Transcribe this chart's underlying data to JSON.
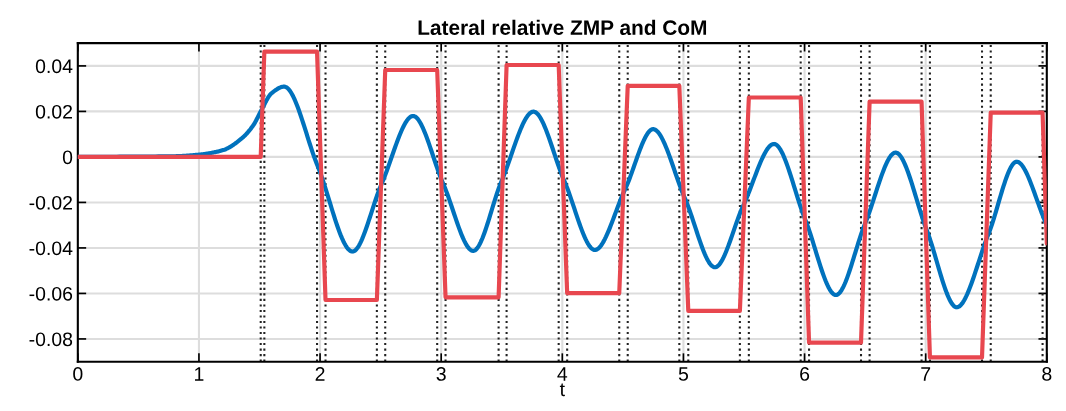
{
  "chart_data": {
    "type": "line",
    "title": "Lateral relative ZMP and CoM",
    "xlabel": "t",
    "xlim": [
      0,
      8
    ],
    "ylim": [
      -0.09,
      0.05
    ],
    "xticks": [
      0,
      1,
      2,
      3,
      4,
      5,
      6,
      7,
      8
    ],
    "yticks": [
      {
        "value": -0.08,
        "label": "-0.08"
      },
      {
        "value": -0.06,
        "label": "-0.06"
      },
      {
        "value": -0.04,
        "label": "-0.04"
      },
      {
        "value": -0.02,
        "label": "-0.02"
      },
      0,
      0.02,
      0.04
    ],
    "grid": true,
    "legend": false,
    "marker": "none",
    "line_style": "solid",
    "series": [
      {
        "color": "#0072bd",
        "x": [
          0,
          0.8,
          1.0,
          1.2,
          1.35,
          1.45,
          1.51,
          1.6,
          1.704,
          1.98,
          2.268,
          2.507,
          2.768,
          3.016,
          3.264,
          3.498,
          3.762,
          4.016,
          4.269,
          4.517,
          4.75,
          5.012,
          5.26,
          5.494,
          5.748,
          6.005,
          6.259,
          6.499,
          6.752,
          7.008,
          7.256,
          7.517,
          7.751,
          8.0
        ],
        "values": [
          0,
          0.0003,
          0.001,
          0.003,
          0.008,
          0.014,
          0.02,
          0.028,
          0.0309,
          -0.004,
          -0.0416,
          -0.012,
          0.018,
          -0.0117,
          -0.0413,
          -0.0107,
          0.0199,
          -0.0105,
          -0.0409,
          -0.0144,
          0.0122,
          -0.0182,
          -0.0485,
          -0.0214,
          0.0057,
          -0.0275,
          -0.0607,
          -0.0294,
          0.0019,
          -0.0321,
          -0.0661,
          -0.0341,
          -0.0021,
          -0.03
        ]
      },
      {
        "color": "#e8474f",
        "x": [
          0,
          1.51,
          1.54,
          1.975,
          2.045,
          2.469,
          2.538,
          2.967,
          3.036,
          3.474,
          3.54,
          3.97,
          4.04,
          4.47,
          4.54,
          4.966,
          5.04,
          5.466,
          5.54,
          5.968,
          6.037,
          6.466,
          6.537,
          6.966,
          7.035,
          7.465,
          7.537,
          7.965,
          8.0
        ],
        "values": [
          0,
          0,
          0.0463,
          0.0463,
          -0.0629,
          -0.0629,
          0.0382,
          0.0382,
          -0.0617,
          -0.0617,
          0.0404,
          0.0404,
          -0.0599,
          -0.0599,
          0.0312,
          0.0312,
          -0.0677,
          -0.0677,
          0.0261,
          0.0261,
          -0.0816,
          -0.0816,
          0.0243,
          0.0243,
          -0.0881,
          -0.0881,
          0.0195,
          0.0195,
          -0.038
        ]
      }
    ],
    "ref_lines": [
      {
        "axis": "x",
        "value": 1.51,
        "color": "#222222",
        "line_style": "dotted"
      },
      {
        "axis": "x",
        "value": 1.54,
        "color": "#222222",
        "line_style": "dotted"
      },
      {
        "axis": "x",
        "value": 1.975,
        "color": "#222222",
        "line_style": "dotted"
      },
      {
        "axis": "x",
        "value": 2.045,
        "color": "#222222",
        "line_style": "dotted"
      },
      {
        "axis": "x",
        "value": 2.469,
        "color": "#222222",
        "line_style": "dotted"
      },
      {
        "axis": "x",
        "value": 2.538,
        "color": "#222222",
        "line_style": "dotted"
      },
      {
        "axis": "x",
        "value": 2.967,
        "color": "#222222",
        "line_style": "dotted"
      },
      {
        "axis": "x",
        "value": 3.036,
        "color": "#222222",
        "line_style": "dotted"
      },
      {
        "axis": "x",
        "value": 3.474,
        "color": "#222222",
        "line_style": "dotted"
      },
      {
        "axis": "x",
        "value": 3.54,
        "color": "#222222",
        "line_style": "dotted"
      },
      {
        "axis": "x",
        "value": 3.97,
        "color": "#222222",
        "line_style": "dotted"
      },
      {
        "axis": "x",
        "value": 4.04,
        "color": "#222222",
        "line_style": "dotted"
      },
      {
        "axis": "x",
        "value": 4.47,
        "color": "#222222",
        "line_style": "dotted"
      },
      {
        "axis": "x",
        "value": 4.54,
        "color": "#222222",
        "line_style": "dotted"
      },
      {
        "axis": "x",
        "value": 4.966,
        "color": "#222222",
        "line_style": "dotted"
      },
      {
        "axis": "x",
        "value": 5.04,
        "color": "#222222",
        "line_style": "dotted"
      },
      {
        "axis": "x",
        "value": 5.466,
        "color": "#222222",
        "line_style": "dotted"
      },
      {
        "axis": "x",
        "value": 5.54,
        "color": "#222222",
        "line_style": "dotted"
      },
      {
        "axis": "x",
        "value": 5.968,
        "color": "#222222",
        "line_style": "dotted"
      },
      {
        "axis": "x",
        "value": 6.037,
        "color": "#222222",
        "line_style": "dotted"
      },
      {
        "axis": "x",
        "value": 6.466,
        "color": "#222222",
        "line_style": "dotted"
      },
      {
        "axis": "x",
        "value": 6.537,
        "color": "#222222",
        "line_style": "dotted"
      },
      {
        "axis": "x",
        "value": 6.966,
        "color": "#222222",
        "line_style": "dotted"
      },
      {
        "axis": "x",
        "value": 7.035,
        "color": "#222222",
        "line_style": "dotted"
      },
      {
        "axis": "x",
        "value": 7.465,
        "color": "#222222",
        "line_style": "dotted"
      },
      {
        "axis": "x",
        "value": 7.537,
        "color": "#222222",
        "line_style": "dotted"
      },
      {
        "axis": "x",
        "value": 7.965,
        "color": "#222222",
        "line_style": "dotted"
      }
    ]
  }
}
